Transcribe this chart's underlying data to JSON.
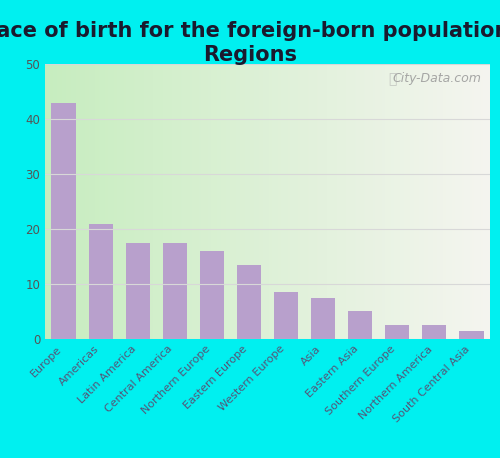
{
  "title": "Place of birth for the foreign-born population -\nRegions",
  "categories": [
    "Europe",
    "Americas",
    "Latin America",
    "Central America",
    "Northern Europe",
    "Eastern Europe",
    "Western Europe",
    "Asia",
    "Eastern Asia",
    "Southern Europe",
    "Northern America",
    "South Central Asia"
  ],
  "values": [
    43.0,
    21.0,
    17.5,
    17.5,
    16.0,
    13.5,
    8.5,
    7.5,
    5.0,
    2.5,
    2.5,
    1.5
  ],
  "bar_color": "#b8a0cc",
  "ylim": [
    0,
    50
  ],
  "yticks": [
    0,
    10,
    20,
    30,
    40,
    50
  ],
  "bg_left_color": "#c8eec0",
  "bg_right_color": "#f0f0e8",
  "outer_background": "#00f0f0",
  "title_fontsize": 15,
  "title_color": "#1a1a2e",
  "watermark_text": "City-Data.com",
  "tick_label_color": "#555577",
  "ytick_label_color": "#555555",
  "grid_color": "#d8d8d8"
}
